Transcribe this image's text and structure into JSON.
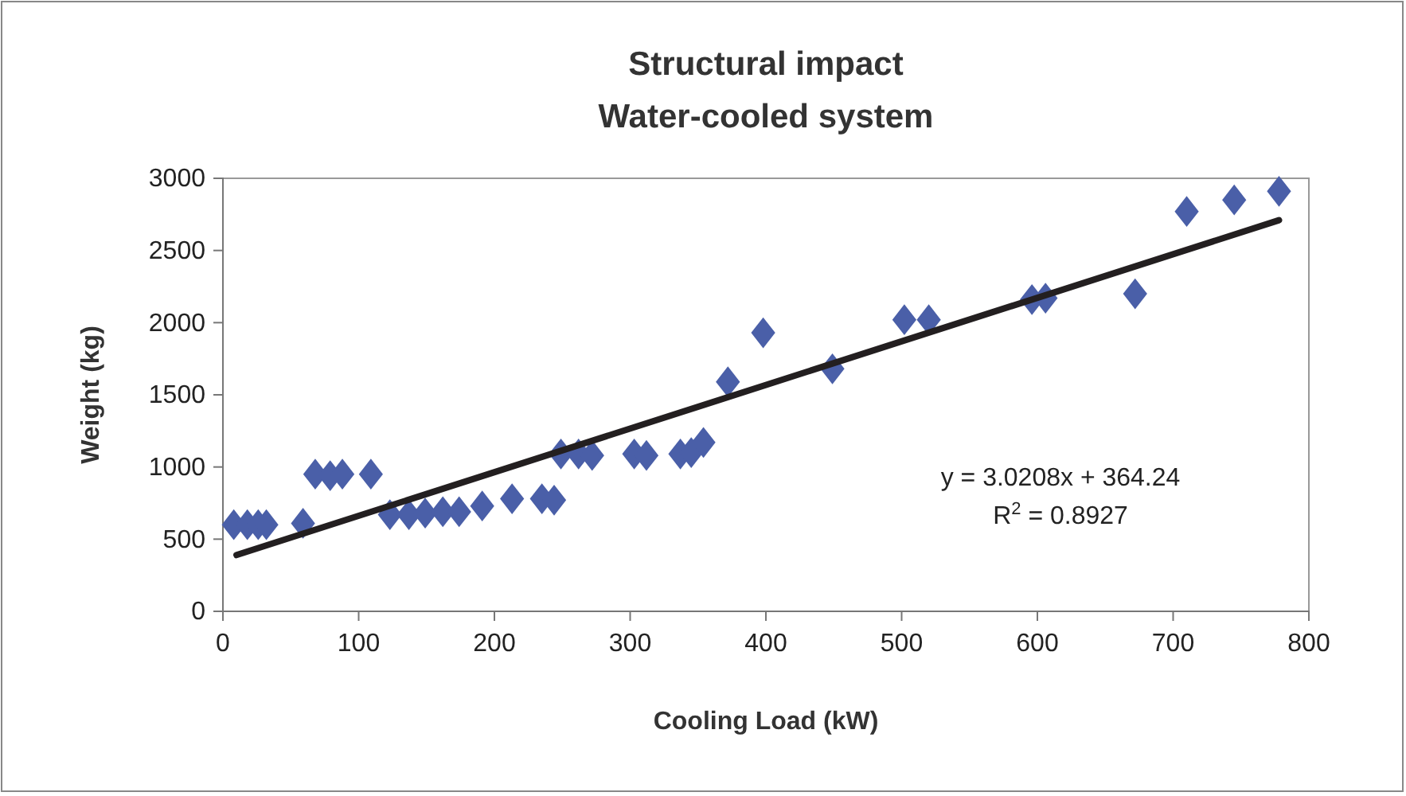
{
  "chart_data": {
    "type": "scatter",
    "title": "Structural impact",
    "subtitle": "Water-cooled system",
    "xlabel": "Cooling Load (kW)",
    "ylabel": "Weight (kg)",
    "xlim": [
      0,
      800
    ],
    "xticks": [
      0,
      100,
      200,
      300,
      400,
      500,
      600,
      700,
      800
    ],
    "ylim": [
      0,
      3000
    ],
    "yticks": [
      0,
      500,
      1000,
      1500,
      2000,
      2500,
      3000
    ],
    "grid": false,
    "marker": "diamond",
    "annotations": [
      "y = 3.0208x + 364.24",
      "R$^{2}$ = 0.8927"
    ],
    "series": [
      {
        "color": "#4a5fa8",
        "x": [
          8,
          18,
          26,
          32,
          59,
          68,
          79,
          88,
          109,
          123,
          137,
          149,
          162,
          174,
          191,
          213,
          235,
          244,
          249,
          262,
          272,
          303,
          312,
          337,
          345,
          354,
          372,
          398,
          449,
          502,
          520,
          596,
          606,
          672,
          710,
          745,
          778
        ],
        "values": [
          600,
          600,
          600,
          600,
          610,
          950,
          940,
          950,
          950,
          670,
          670,
          680,
          690,
          690,
          730,
          780,
          780,
          770,
          1090,
          1090,
          1080,
          1090,
          1080,
          1090,
          1100,
          1170,
          1590,
          1930,
          1680,
          2020,
          2020,
          2160,
          2170,
          2200,
          2770,
          2850,
          2910
        ]
      },
      {
        "type": "line",
        "color": "#231f20",
        "marker": "none",
        "line_style": "solid",
        "x": [
          10,
          778
        ],
        "values": [
          390,
          2710
        ]
      }
    ]
  }
}
